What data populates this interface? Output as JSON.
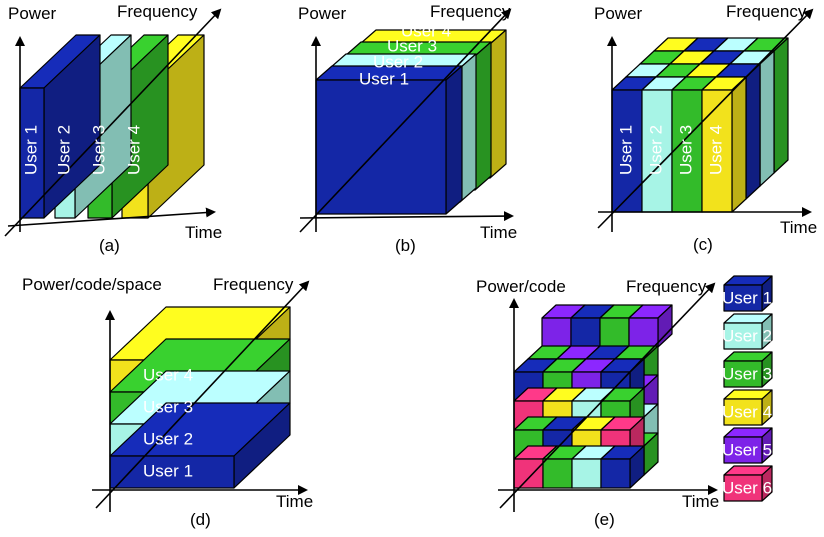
{
  "colors": {
    "user1": "#1427a6",
    "user2": "#a7f4e6",
    "user3": "#33bb2a",
    "user4": "#f2e21c",
    "user5": "#7d23e8",
    "user6": "#f0337a"
  },
  "panel_a": {
    "y_label": "Power",
    "z_label": "Frequency",
    "x_label": "Time",
    "caption": "(a)",
    "users": [
      "User 1",
      "User 2",
      "User 3",
      "User 4"
    ]
  },
  "panel_b": {
    "y_label": "Power",
    "z_label": "Frequency",
    "x_label": "Time",
    "caption": "(b)",
    "users": [
      "User 1",
      "User 2",
      "User 3",
      "User 4"
    ]
  },
  "panel_c": {
    "y_label": "Power",
    "z_label": "Frequency",
    "x_label": "Time",
    "caption": "(c)",
    "users": [
      "User 1",
      "User 2",
      "User 3",
      "User 4"
    ]
  },
  "panel_d": {
    "y_label": "Power/code/space",
    "z_label": "Frequency",
    "x_label": "Time",
    "caption": "(d)",
    "users": [
      "User 1",
      "User 2",
      "User 3",
      "User 4"
    ]
  },
  "panel_e": {
    "y_label": "Power/code",
    "z_label": "Frequency",
    "x_label": "Time",
    "caption": "(e)",
    "legend": [
      "User 1",
      "User 2",
      "User 3",
      "User 4",
      "User 5",
      "User 6"
    ]
  }
}
